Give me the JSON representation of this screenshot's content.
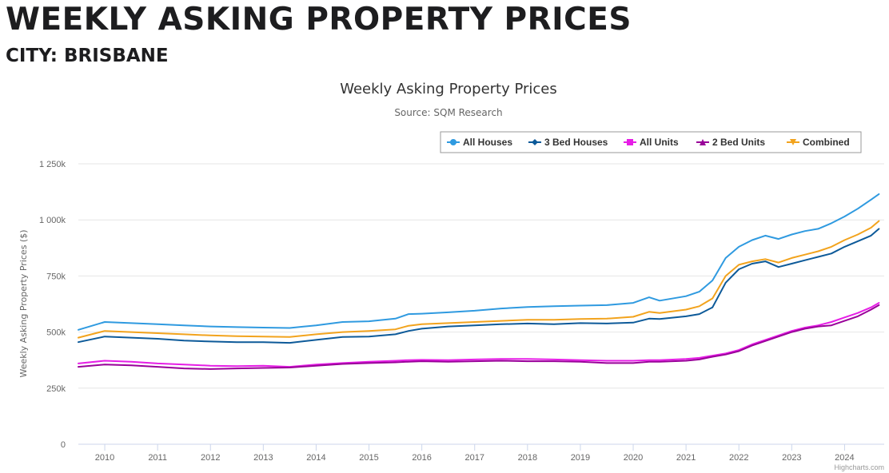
{
  "page": {
    "heading": "WEEKLY ASKING PROPERTY PRICES",
    "subheading": "CITY: BRISBANE"
  },
  "credits": "Highcharts.com",
  "chart_data": {
    "type": "line",
    "title": "Weekly Asking Property Prices",
    "subtitle": "Source: SQM Research",
    "xlabel": "",
    "ylabel": "Weekly Asking Property Prices ($)",
    "xlim": [
      2009.5,
      2024.75
    ],
    "ylim": [
      0,
      1250000
    ],
    "x_ticks": [
      2010,
      2011,
      2012,
      2013,
      2014,
      2015,
      2016,
      2017,
      2018,
      2019,
      2020,
      2021,
      2022,
      2023,
      2024
    ],
    "y_ticks": [
      {
        "value": 0,
        "label": "0"
      },
      {
        "value": 250000,
        "label": "250k"
      },
      {
        "value": 500000,
        "label": "500k"
      },
      {
        "value": 750000,
        "label": "750k"
      },
      {
        "value": 1000000,
        "label": "1 000k"
      },
      {
        "value": 1250000,
        "label": "1 250k"
      }
    ],
    "grid": true,
    "legend_position": "top-right",
    "x": [
      2009.5,
      2010.0,
      2010.5,
      2011.0,
      2011.5,
      2012.0,
      2012.5,
      2013.0,
      2013.5,
      2014.0,
      2014.5,
      2015.0,
      2015.5,
      2015.75,
      2016.0,
      2016.5,
      2017.0,
      2017.5,
      2018.0,
      2018.5,
      2019.0,
      2019.5,
      2020.0,
      2020.3,
      2020.5,
      2021.0,
      2021.25,
      2021.5,
      2021.75,
      2022.0,
      2022.25,
      2022.5,
      2022.75,
      2023.0,
      2023.25,
      2023.5,
      2023.75,
      2024.0,
      2024.25,
      2024.5,
      2024.65
    ],
    "series": [
      {
        "name": "All Houses",
        "color": "#2f9ae0",
        "marker": "circle",
        "values": [
          510000,
          545000,
          540000,
          535000,
          530000,
          525000,
          522000,
          520000,
          518000,
          530000,
          545000,
          548000,
          560000,
          580000,
          582000,
          588000,
          595000,
          605000,
          612000,
          615000,
          618000,
          620000,
          630000,
          655000,
          640000,
          660000,
          680000,
          730000,
          830000,
          880000,
          910000,
          930000,
          915000,
          935000,
          950000,
          960000,
          985000,
          1015000,
          1050000,
          1090000,
          1115000
        ]
      },
      {
        "name": "3 Bed Houses",
        "color": "#0d5a99",
        "marker": "diamond",
        "values": [
          455000,
          480000,
          475000,
          470000,
          462000,
          458000,
          455000,
          455000,
          452000,
          465000,
          478000,
          480000,
          490000,
          505000,
          515000,
          525000,
          530000,
          535000,
          538000,
          535000,
          540000,
          538000,
          542000,
          560000,
          558000,
          570000,
          580000,
          610000,
          720000,
          780000,
          805000,
          815000,
          790000,
          805000,
          820000,
          835000,
          850000,
          880000,
          905000,
          930000,
          960000
        ]
      },
      {
        "name": "All Units",
        "color": "#e61ee6",
        "marker": "square",
        "values": [
          360000,
          372000,
          368000,
          360000,
          355000,
          350000,
          348000,
          350000,
          345000,
          355000,
          362000,
          368000,
          372000,
          375000,
          376000,
          375000,
          378000,
          380000,
          380000,
          378000,
          375000,
          372000,
          372000,
          375000,
          375000,
          380000,
          385000,
          395000,
          405000,
          420000,
          445000,
          465000,
          485000,
          505000,
          520000,
          530000,
          545000,
          565000,
          585000,
          610000,
          630000
        ]
      },
      {
        "name": "2 Bed Units",
        "color": "#990099",
        "marker": "triangle",
        "values": [
          345000,
          355000,
          352000,
          345000,
          338000,
          335000,
          338000,
          340000,
          342000,
          350000,
          358000,
          362000,
          365000,
          368000,
          370000,
          368000,
          370000,
          372000,
          370000,
          370000,
          368000,
          362000,
          362000,
          368000,
          368000,
          372000,
          378000,
          390000,
          400000,
          415000,
          440000,
          460000,
          480000,
          500000,
          515000,
          525000,
          530000,
          550000,
          570000,
          600000,
          620000
        ]
      },
      {
        "name": "Combined",
        "color": "#f2a31d",
        "marker": "triangle-down",
        "values": [
          475000,
          505000,
          500000,
          495000,
          490000,
          485000,
          482000,
          480000,
          478000,
          490000,
          500000,
          505000,
          512000,
          528000,
          535000,
          540000,
          545000,
          550000,
          555000,
          555000,
          558000,
          560000,
          568000,
          590000,
          585000,
          600000,
          615000,
          650000,
          750000,
          800000,
          815000,
          825000,
          810000,
          830000,
          845000,
          860000,
          880000,
          910000,
          935000,
          965000,
          995000
        ]
      }
    ]
  }
}
